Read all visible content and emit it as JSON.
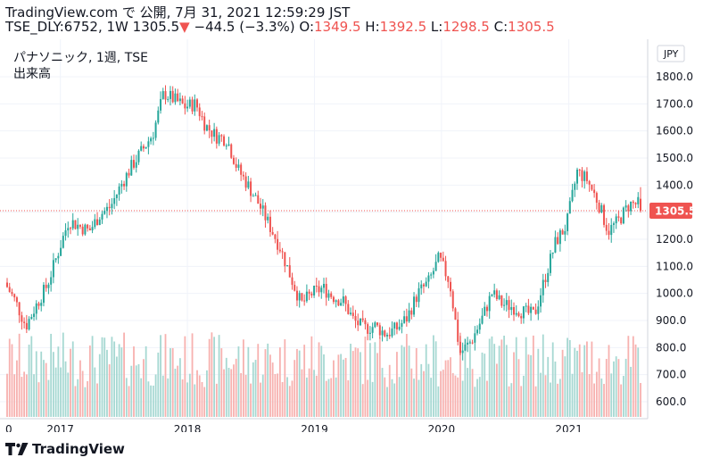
{
  "header": {
    "site": "TradingView.com",
    "published": "で 公開, 7月 31, 2021 12:59:29 JST",
    "symbol": "TSE_DLY:6752, 1W",
    "last": "1305.5",
    "arrow": "▼",
    "change": "−44.5 (−3.3%)",
    "o_label": "O:",
    "o_val": "1349.5",
    "h_label": "H:",
    "h_val": "1392.5",
    "l_label": "L:",
    "l_val": "1298.5",
    "c_label": "C:",
    "c_val": "1305.5"
  },
  "legend": {
    "symbol_line": "パナソニック, 1週, TSE",
    "volume_line": "出来高"
  },
  "footer": {
    "brand": "TradingView"
  },
  "colors": {
    "up": "#26a69a",
    "down": "#ef5350",
    "vol_up": "#a6d8d2",
    "vol_down": "#f7b1af",
    "grid": "#f0f3fa",
    "text": "#131722"
  },
  "chart_data": {
    "type": "candlestick",
    "currency": "JPY",
    "y_ticks": [
      1800.0,
      1700.0,
      1600.0,
      1500.0,
      1400.0,
      1300.0,
      1200.0,
      1100.0,
      1000.0,
      900.0,
      800.0,
      700.0,
      600.0
    ],
    "ylim": [
      560,
      1890
    ],
    "x_labels": [
      "2017",
      "2018",
      "2019",
      "2020",
      "2021"
    ],
    "x_label_left_fragment": "0",
    "last_price_label": "1305.5",
    "axis_unit_label": "JPY",
    "trend_weekly_close": [
      [
        "2016-08-01",
        1040
      ],
      [
        "2016-09-01",
        970
      ],
      [
        "2016-10-01",
        880
      ],
      [
        "2016-11-01",
        960
      ],
      [
        "2016-12-01",
        1030
      ],
      [
        "2017-01-01",
        1150
      ],
      [
        "2017-02-01",
        1270
      ],
      [
        "2017-03-01",
        1250
      ],
      [
        "2017-04-01",
        1230
      ],
      [
        "2017-05-01",
        1290
      ],
      [
        "2017-06-01",
        1320
      ],
      [
        "2017-07-01",
        1400
      ],
      [
        "2017-08-01",
        1470
      ],
      [
        "2017-09-01",
        1530
      ],
      [
        "2017-10-01",
        1590
      ],
      [
        "2017-11-01",
        1740
      ],
      [
        "2018-01-01",
        1690
      ],
      [
        "2018-02-01",
        1700
      ],
      [
        "2018-03-01",
        1620
      ],
      [
        "2018-04-01",
        1580
      ],
      [
        "2018-05-01",
        1570
      ],
      [
        "2018-06-01",
        1460
      ],
      [
        "2018-07-01",
        1400
      ],
      [
        "2018-08-01",
        1330
      ],
      [
        "2018-09-01",
        1250
      ],
      [
        "2018-10-01",
        1170
      ],
      [
        "2018-11-01",
        1060
      ],
      [
        "2018-12-01",
        960
      ],
      [
        "2019-01-01",
        1000
      ],
      [
        "2019-02-01",
        1020
      ],
      [
        "2019-03-01",
        990
      ],
      [
        "2019-04-01",
        970
      ],
      [
        "2019-05-01",
        900
      ],
      [
        "2019-06-01",
        870
      ],
      [
        "2019-07-01",
        880
      ],
      [
        "2019-08-01",
        850
      ],
      [
        "2019-09-01",
        870
      ],
      [
        "2019-10-01",
        910
      ],
      [
        "2019-11-01",
        1000
      ],
      [
        "2019-12-01",
        1040
      ],
      [
        "2020-01-01",
        1130
      ],
      [
        "2020-02-01",
        1040
      ],
      [
        "2020-03-01",
        780
      ],
      [
        "2020-04-01",
        820
      ],
      [
        "2020-05-01",
        900
      ],
      [
        "2020-06-01",
        1000
      ],
      [
        "2020-07-01",
        960
      ],
      [
        "2020-08-01",
        950
      ],
      [
        "2020-09-01",
        930
      ],
      [
        "2020-10-01",
        920
      ],
      [
        "2020-11-01",
        1060
      ],
      [
        "2020-12-01",
        1190
      ],
      [
        "2021-01-01",
        1250
      ],
      [
        "2021-02-01",
        1450
      ],
      [
        "2021-03-01",
        1420
      ],
      [
        "2021-04-01",
        1340
      ],
      [
        "2021-05-01",
        1230
      ],
      [
        "2021-06-01",
        1270
      ],
      [
        "2021-07-01",
        1330
      ]
    ]
  }
}
